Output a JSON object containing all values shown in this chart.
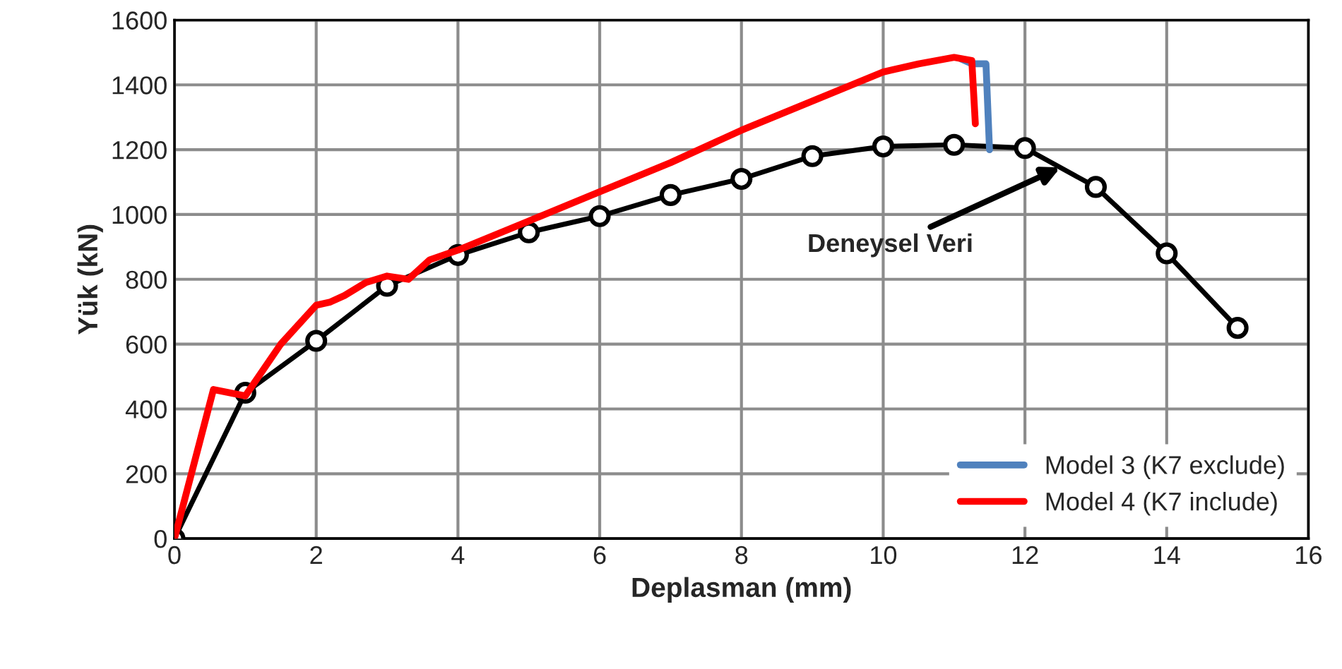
{
  "chart_data": {
    "type": "line",
    "xlabel": "Deplasman (mm)",
    "ylabel": "Yük (kN)",
    "xlim": [
      0,
      16
    ],
    "xticks": [
      0,
      2,
      4,
      6,
      8,
      10,
      12,
      14,
      16
    ],
    "ylim": [
      0,
      1600
    ],
    "yticks": [
      0,
      200,
      400,
      600,
      800,
      1000,
      1200,
      1400,
      1600
    ],
    "grid": true,
    "legend": "bottom right",
    "annotations": [
      {
        "text": "Deneysel Veri",
        "x": 12.5,
        "y": 1145
      }
    ],
    "series": [
      {
        "color": "#000000",
        "marker": "circle",
        "x": [
          0,
          1,
          2,
          3,
          4,
          5,
          6,
          7,
          8,
          9,
          10,
          11,
          12,
          13,
          14,
          15
        ],
        "values": [
          0,
          450,
          610,
          780,
          875,
          945,
          995,
          1060,
          1110,
          1180,
          1210,
          1215,
          1205,
          1085,
          880,
          650
        ]
      },
      {
        "name": "Model 3 (K7 exclude)",
        "color": "#4f81bd",
        "x": [
          11.1,
          11.25,
          11.45,
          11.5
        ],
        "values": [
          1480,
          1465,
          1465,
          1200
        ]
      },
      {
        "name": "Model 4 (K7 include)",
        "color": "#ff0000",
        "x": [
          0,
          0.55,
          1.0,
          1.5,
          2.0,
          2.2,
          2.4,
          2.7,
          3.0,
          3.3,
          3.6,
          4.0,
          5.0,
          6.0,
          7.0,
          8.0,
          9.0,
          10.0,
          10.5,
          11.0,
          11.25,
          11.3
        ],
        "values": [
          0,
          460,
          440,
          600,
          720,
          730,
          750,
          790,
          810,
          800,
          860,
          890,
          980,
          1070,
          1160,
          1260,
          1350,
          1440,
          1465,
          1485,
          1475,
          1280
        ]
      }
    ]
  }
}
